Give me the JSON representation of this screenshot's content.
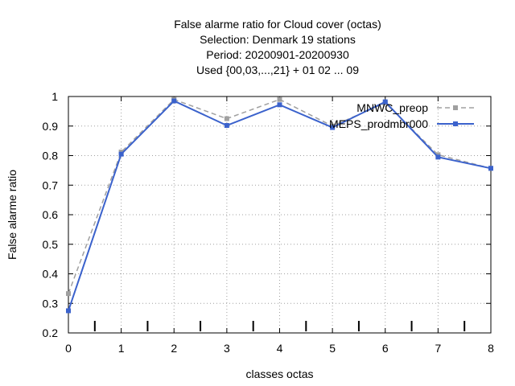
{
  "chart_data": {
    "type": "line",
    "title_lines": [
      "False alarme ratio  for Cloud cover (octas)",
      "Selection: Denmark      19 stations",
      "Period: 20200901-20200930",
      "Used {00,03,...,21} + 01 02 ... 09"
    ],
    "xlabel": "classes octas",
    "ylabel": "False alarme ratio",
    "xlim": [
      0,
      8
    ],
    "ylim": [
      0.2,
      1.0
    ],
    "xticks": [
      0,
      1,
      2,
      3,
      4,
      5,
      6,
      7,
      8
    ],
    "xtick_labels": [
      "0",
      "1",
      "2",
      "3",
      "4",
      "5",
      "6",
      "7",
      "8"
    ],
    "yticks": [
      0.2,
      0.3,
      0.4,
      0.5,
      0.6,
      0.7,
      0.8,
      0.9,
      1.0
    ],
    "ytick_labels": [
      "0.2",
      "0.3",
      "0.4",
      "0.5",
      "0.6",
      "0.7",
      "0.8",
      "0.9",
      "1"
    ],
    "minor_xticks": [
      0.5,
      1.5,
      2.5,
      3.5,
      4.5,
      5.5,
      6.5,
      7.5
    ],
    "grid": true,
    "legend_position": "top-right",
    "series": [
      {
        "name": "MNWC_preop",
        "color": "#a0a0a0",
        "dashed": true,
        "x": [
          0,
          1,
          2,
          3,
          4,
          5,
          6,
          7,
          8
        ],
        "values": [
          0.333,
          0.812,
          0.99,
          0.925,
          0.99,
          0.9,
          0.978,
          0.803,
          0.757
        ]
      },
      {
        "name": "MEPS_prodmbr000",
        "color": "#3b62cc",
        "dashed": false,
        "x": [
          0,
          1,
          2,
          3,
          4,
          5,
          6,
          7,
          8
        ],
        "values": [
          0.275,
          0.805,
          0.985,
          0.902,
          0.972,
          0.895,
          0.982,
          0.795,
          0.757
        ]
      }
    ]
  }
}
